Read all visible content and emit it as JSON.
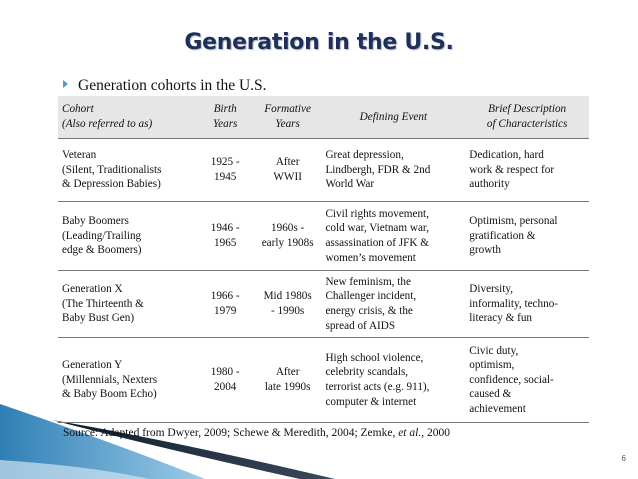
{
  "title": "Generation in the U.S.",
  "bullet": "Generation cohorts in the U.S.",
  "table": {
    "headers": {
      "cohort_line1": "Cohort",
      "cohort_line2": "(Also referred to as)",
      "birth_line1": "Birth",
      "birth_line2": "Years",
      "formative_line1": "Formative",
      "formative_line2": "Years",
      "event": "Defining Event",
      "desc_line1": "Brief Description",
      "desc_line2": "of Characteristics"
    },
    "rows": [
      {
        "cohort": [
          "Veteran",
          "(Silent, Traditionalists",
          "& Depression Babies)"
        ],
        "birth": [
          "1925 -",
          "1945"
        ],
        "formative": [
          "After",
          "WWII"
        ],
        "event": [
          "Great depression,",
          "Lindbergh, FDR & 2nd",
          "World War"
        ],
        "desc": [
          "Dedication, hard",
          "work & respect for",
          "authority"
        ]
      },
      {
        "cohort": [
          "Baby Boomers",
          "(Leading/Trailing",
          "edge & Boomers)"
        ],
        "birth": [
          "1946 -",
          "1965"
        ],
        "formative": [
          "1960s -",
          "early 1908s"
        ],
        "event": [
          "Civil rights movement,",
          "cold war, Vietnam war,",
          "assassination of JFK &",
          "women’s movement"
        ],
        "desc": [
          "Optimism, personal",
          "gratification &",
          "growth"
        ]
      },
      {
        "cohort": [
          "Generation X",
          "(The Thirteenth &",
          "Baby Bust Gen)"
        ],
        "birth": [
          "1966 -",
          "1979"
        ],
        "formative": [
          "Mid 1980s",
          "- 1990s"
        ],
        "event": [
          "New feminism, the",
          "Challenger incident,",
          "energy crisis, & the",
          "spread of AIDS"
        ],
        "desc": [
          "Diversity,",
          "informality, techno-",
          "literacy & fun"
        ]
      },
      {
        "cohort": [
          "Generation Y",
          "(Millennials, Nexters",
          "& Baby Boom Echo)"
        ],
        "birth": [
          "1980 -",
          "2004"
        ],
        "formative": [
          "After",
          "late 1990s"
        ],
        "event": [
          "High school violence,",
          "celebrity scandals,",
          "terrorist acts (e.g. 911),",
          "computer & internet"
        ],
        "desc": [
          "Civic duty,",
          "optimism,",
          "confidence, social-",
          "caused &",
          "achievement"
        ]
      }
    ]
  },
  "source": {
    "prefix": "Source: Adapted from Dwyer, 2009; Schewe & Meredith, 2004; Zemke, ",
    "etal": "et al.",
    "suffix": ", 2000"
  },
  "page_number": "6",
  "colors": {
    "title": "#1f2f5c",
    "bullet": "#4aa0c8",
    "header_bg": "#e6e6e6",
    "swoosh_dark": "#0d1a2a",
    "swoosh_blue": "#2f7fb5"
  }
}
